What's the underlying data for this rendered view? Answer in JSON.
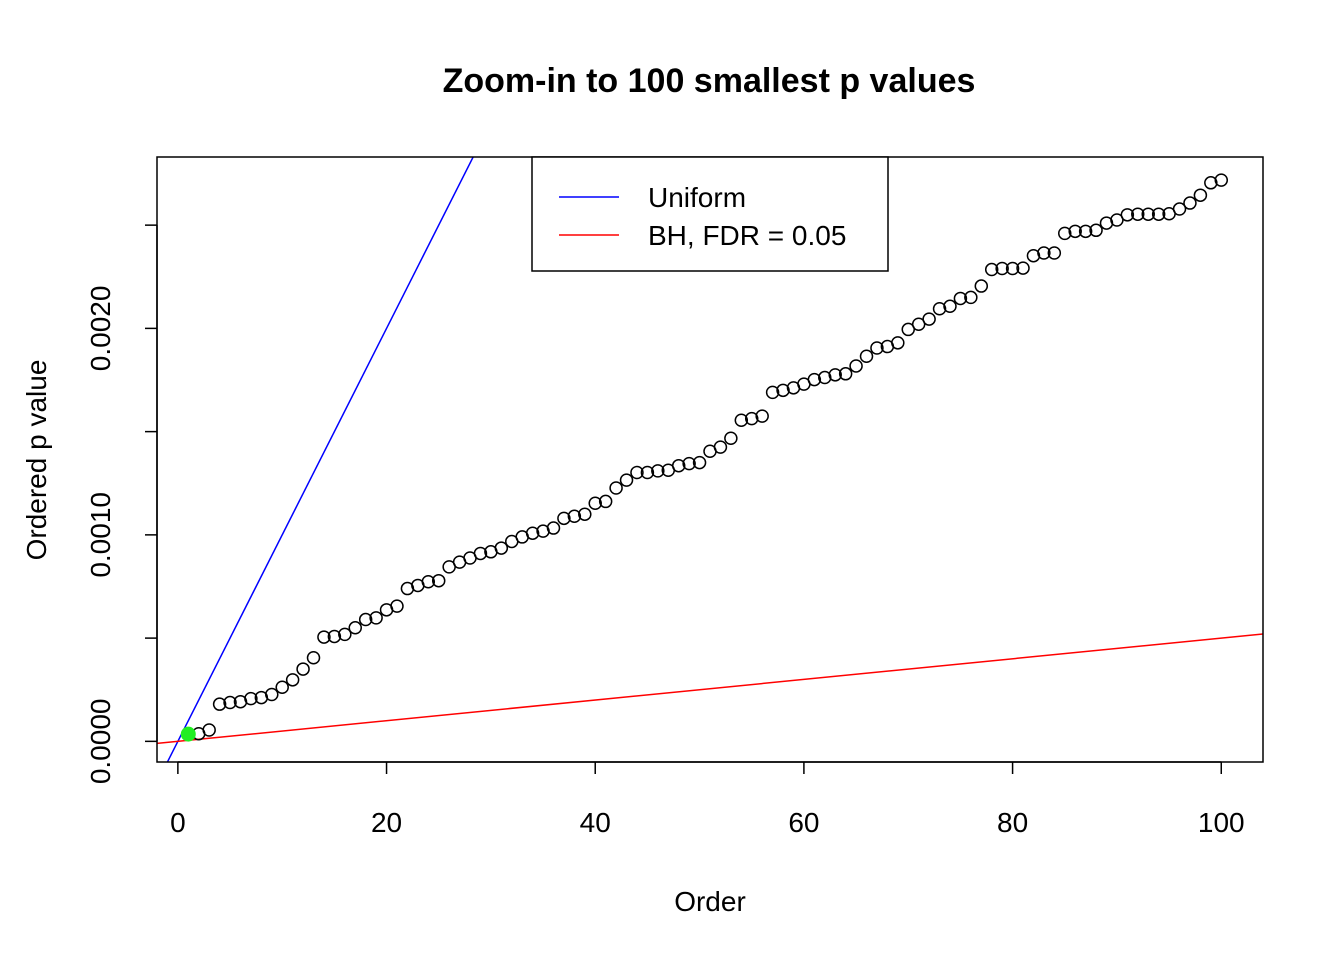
{
  "chart_data": {
    "type": "scatter",
    "title": "Zoom-in to 100 smallest p values",
    "xlabel": "Order",
    "ylabel": "Ordered p value",
    "xlim": [
      -2,
      104
    ],
    "ylim": [
      -0.0001,
      0.00283
    ],
    "x_ticks": [
      0,
      20,
      40,
      60,
      80,
      100
    ],
    "x_tick_labels": [
      "0",
      "20",
      "40",
      "60",
      "80",
      "100"
    ],
    "y_ticks": [
      0,
      0.0005,
      0.001,
      0.0015,
      0.002,
      0.0025
    ],
    "y_tick_labels": [
      "0.0000",
      "",
      "0.0010",
      "",
      "0.0020",
      ""
    ],
    "grid": false,
    "legend": {
      "position": "top-center",
      "entries": [
        {
          "label": "Uniform",
          "color": "#0000ff"
        },
        {
          "label": "BH, FDR = 0.05",
          "color": "#ff0000"
        }
      ]
    },
    "lines": [
      {
        "name": "Uniform",
        "color": "#0000ff",
        "slope": 0.0001,
        "intercept": 0
      },
      {
        "name": "BH, FDR = 0.05",
        "color": "#ff0000",
        "slope": 5e-06,
        "intercept": 0
      }
    ],
    "series": [
      {
        "color": "#000000",
        "x": [
          1,
          2,
          3,
          4,
          5,
          6,
          7,
          8,
          9,
          10,
          11,
          12,
          13,
          14,
          15,
          16,
          17,
          18,
          19,
          20,
          21,
          22,
          23,
          24,
          25,
          26,
          27,
          28,
          29,
          30,
          31,
          32,
          33,
          34,
          35,
          36,
          37,
          38,
          39,
          40,
          41,
          42,
          43,
          44,
          45,
          46,
          47,
          48,
          49,
          50,
          51,
          52,
          53,
          54,
          55,
          56,
          57,
          58,
          59,
          60,
          61,
          62,
          63,
          64,
          65,
          66,
          67,
          68,
          69,
          70,
          71,
          72,
          73,
          74,
          75,
          76,
          77,
          78,
          79,
          80,
          81,
          82,
          83,
          84,
          85,
          86,
          87,
          88,
          89,
          90,
          91,
          92,
          93,
          94,
          95,
          96,
          97,
          98,
          99,
          100
        ],
        "y": [
          3.5e-05,
          3.7e-05,
          5.5e-05,
          0.00018,
          0.000188,
          0.000192,
          0.000207,
          0.000212,
          0.000227,
          0.000262,
          0.000298,
          0.00035,
          0.000405,
          0.000505,
          0.000508,
          0.000518,
          0.00055,
          0.00059,
          0.000598,
          0.000637,
          0.000655,
          0.00074,
          0.000755,
          0.000773,
          0.000778,
          0.000845,
          0.000868,
          0.000888,
          0.00091,
          0.000918,
          0.000936,
          0.000968,
          0.00099,
          0.001008,
          0.001018,
          0.001033,
          0.00108,
          0.00109,
          0.0011,
          0.001153,
          0.001162,
          0.001227,
          0.001265,
          0.001302,
          0.001302,
          0.00131,
          0.001313,
          0.001335,
          0.001345,
          0.00135,
          0.001405,
          0.001425,
          0.001468,
          0.001555,
          0.001563,
          0.001575,
          0.00169,
          0.0017,
          0.001712,
          0.00173,
          0.001752,
          0.001762,
          0.001775,
          0.00178,
          0.001818,
          0.001865,
          0.001905,
          0.001912,
          0.00193,
          0.001995,
          0.00202,
          0.002045,
          0.002095,
          0.002107,
          0.002145,
          0.00215,
          0.002205,
          0.002285,
          0.00229,
          0.00229,
          0.002292,
          0.002352,
          0.002365,
          0.002365,
          0.00246,
          0.00247,
          0.00247,
          0.002475,
          0.00251,
          0.002525,
          0.00255,
          0.002553,
          0.002553,
          0.002553,
          0.002555,
          0.002578,
          0.002607,
          0.002645,
          0.002705,
          0.002718
        ]
      }
    ],
    "highlight_points": [
      {
        "x": 1,
        "y": 3.5e-05,
        "color": "#22ee22"
      }
    ]
  }
}
